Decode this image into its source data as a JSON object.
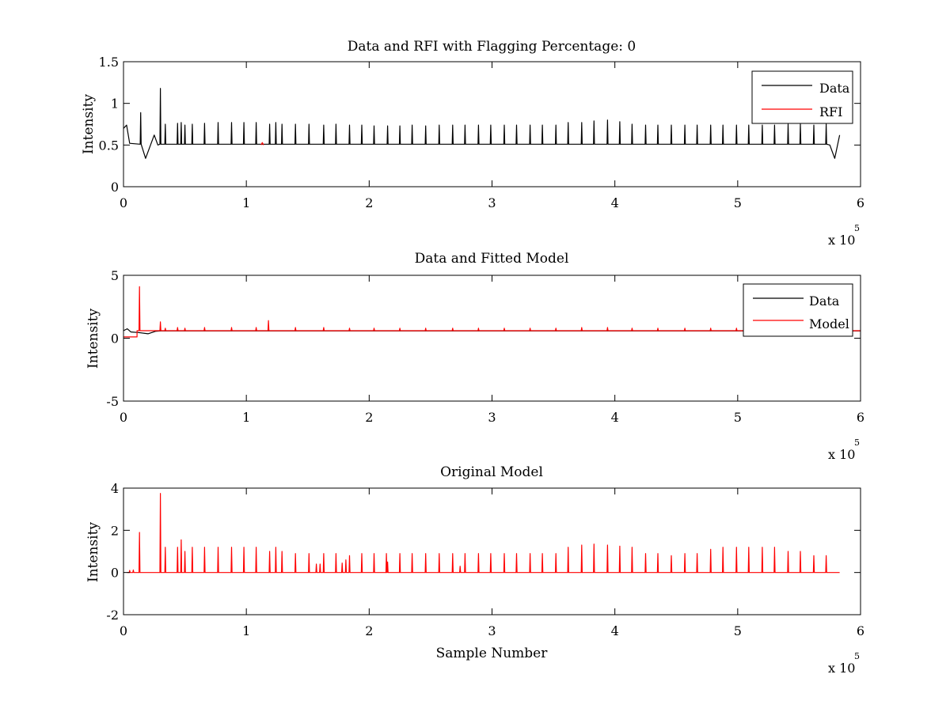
{
  "figure": {
    "background": "#ffffff",
    "axis_color": "#000000"
  },
  "chart_data": [
    {
      "type": "line",
      "title": "Data and RFI with Flagging Percentage: 0",
      "xlabel": "",
      "ylabel": "Intensity",
      "xlim": [
        0,
        600000
      ],
      "ylim": [
        0,
        1.5
      ],
      "x_ticks": [
        0,
        100000,
        200000,
        300000,
        400000,
        500000,
        600000
      ],
      "x_tick_labels": [
        "0",
        "1",
        "2",
        "3",
        "4",
        "5",
        "6"
      ],
      "y_ticks": [
        0,
        0.5,
        1,
        1.5
      ],
      "y_tick_labels": [
        "0",
        "0.5",
        "1",
        "1.5"
      ],
      "x_exponent_label": "x 10",
      "x_exponent": "5",
      "legend": {
        "location": "top-right",
        "entries": [
          "Data",
          "RFI"
        ]
      },
      "series": [
        {
          "name": "Data",
          "color": "#000000",
          "baseline": 0.51,
          "x_range": [
            0,
            583000
          ],
          "features": [
            {
              "x": 0,
              "y": 0.7
            },
            {
              "x": 2500,
              "y": 0.74
            },
            {
              "x": 5000,
              "y": 0.52
            },
            {
              "x": 18000,
              "y": 0.34
            },
            {
              "x": 25000,
              "y": 0.62
            },
            {
              "x": 28000,
              "y": 0.5
            },
            {
              "x": 575000,
              "y": 0.5
            },
            {
              "x": 579000,
              "y": 0.34
            },
            {
              "x": 583000,
              "y": 0.62
            }
          ],
          "spikes": [
            [
              14000,
              0.89
            ],
            [
              30000,
              1.18
            ],
            [
              34000,
              0.75
            ],
            [
              44000,
              0.76
            ],
            [
              47000,
              0.77
            ],
            [
              50000,
              0.74
            ],
            [
              56000,
              0.75
            ],
            [
              66000,
              0.76
            ],
            [
              77000,
              0.77
            ],
            [
              88000,
              0.77
            ],
            [
              98000,
              0.77
            ],
            [
              108000,
              0.77
            ],
            [
              119000,
              0.75
            ],
            [
              124000,
              0.77
            ],
            [
              129000,
              0.75
            ],
            [
              140000,
              0.75
            ],
            [
              151000,
              0.75
            ],
            [
              163000,
              0.74
            ],
            [
              173000,
              0.75
            ],
            [
              184000,
              0.74
            ],
            [
              194000,
              0.74
            ],
            [
              204000,
              0.73
            ],
            [
              215000,
              0.73
            ],
            [
              225000,
              0.73
            ],
            [
              235000,
              0.74
            ],
            [
              246000,
              0.73
            ],
            [
              257000,
              0.74
            ],
            [
              268000,
              0.74
            ],
            [
              278000,
              0.74
            ],
            [
              289000,
              0.74
            ],
            [
              299000,
              0.74
            ],
            [
              310000,
              0.74
            ],
            [
              320000,
              0.74
            ],
            [
              331000,
              0.74
            ],
            [
              341000,
              0.74
            ],
            [
              352000,
              0.74
            ],
            [
              362000,
              0.77
            ],
            [
              373000,
              0.77
            ],
            [
              383000,
              0.79
            ],
            [
              394000,
              0.8
            ],
            [
              404000,
              0.78
            ],
            [
              414000,
              0.75
            ],
            [
              425000,
              0.74
            ],
            [
              435000,
              0.74
            ],
            [
              446000,
              0.74
            ],
            [
              457000,
              0.74
            ],
            [
              467000,
              0.74
            ],
            [
              478000,
              0.74
            ],
            [
              488000,
              0.74
            ],
            [
              499000,
              0.74
            ],
            [
              509000,
              0.74
            ],
            [
              520000,
              0.74
            ],
            [
              530000,
              0.74
            ],
            [
              541000,
              0.75
            ],
            [
              551000,
              0.75
            ],
            [
              562000,
              0.74
            ],
            [
              572000,
              0.75
            ]
          ]
        },
        {
          "name": "RFI",
          "color": "#ff0000",
          "points": [
            [
              112000,
              0.5
            ],
            [
              113000,
              0.53
            ],
            [
              114000,
              0.5
            ]
          ]
        }
      ]
    },
    {
      "type": "line",
      "title": "Data and Fitted Model",
      "xlabel": "",
      "ylabel": "Intensity",
      "xlim": [
        0,
        600000
      ],
      "ylim": [
        -5,
        5
      ],
      "x_ticks": [
        0,
        100000,
        200000,
        300000,
        400000,
        500000,
        600000
      ],
      "x_tick_labels": [
        "0",
        "1",
        "2",
        "3",
        "4",
        "5",
        "6"
      ],
      "y_ticks": [
        -5,
        0,
        5
      ],
      "y_tick_labels": [
        "-5",
        "0",
        "5"
      ],
      "x_exponent_label": "x 10",
      "x_exponent": "5",
      "legend": {
        "location": "top-right",
        "entries": [
          "Data",
          "Model"
        ]
      },
      "series": [
        {
          "name": "Data",
          "color": "#000000",
          "points": [
            [
              0,
              0.6
            ],
            [
              3000,
              0.75
            ],
            [
              6000,
              0.5
            ],
            [
              12000,
              0.45
            ],
            [
              20000,
              0.35
            ],
            [
              26000,
              0.55
            ],
            [
              30000,
              0.58
            ],
            [
              600000,
              0.58
            ]
          ]
        },
        {
          "name": "Model",
          "color": "#ff0000",
          "baseline": 0.6,
          "low_segment": {
            "x": [
              0,
              11000
            ],
            "y": 0.1
          },
          "spikes": [
            [
              13000,
              4.1
            ],
            [
              30000,
              1.3
            ],
            [
              34000,
              0.8
            ],
            [
              44000,
              0.85
            ],
            [
              50000,
              0.8
            ],
            [
              66000,
              0.85
            ],
            [
              88000,
              0.85
            ],
            [
              108000,
              0.85
            ],
            [
              118000,
              1.4
            ],
            [
              140000,
              0.85
            ],
            [
              163000,
              0.85
            ],
            [
              184000,
              0.8
            ],
            [
              204000,
              0.8
            ],
            [
              225000,
              0.8
            ],
            [
              246000,
              0.8
            ],
            [
              268000,
              0.8
            ],
            [
              289000,
              0.8
            ],
            [
              310000,
              0.8
            ],
            [
              331000,
              0.8
            ],
            [
              352000,
              0.8
            ],
            [
              373000,
              0.85
            ],
            [
              394000,
              0.85
            ],
            [
              414000,
              0.8
            ],
            [
              435000,
              0.8
            ],
            [
              457000,
              0.8
            ],
            [
              478000,
              0.8
            ],
            [
              499000,
              0.8
            ],
            [
              520000,
              0.8
            ],
            [
              541000,
              0.8
            ],
            [
              562000,
              0.8
            ],
            [
              583000,
              0.8
            ]
          ]
        }
      ]
    },
    {
      "type": "line",
      "title": "Original Model",
      "xlabel": "Sample Number",
      "ylabel": "Intensity",
      "xlim": [
        0,
        600000
      ],
      "ylim": [
        -2,
        4
      ],
      "x_ticks": [
        0,
        100000,
        200000,
        300000,
        400000,
        500000,
        600000
      ],
      "x_tick_labels": [
        "0",
        "1",
        "2",
        "3",
        "4",
        "5",
        "6"
      ],
      "y_ticks": [
        -2,
        0,
        2,
        4
      ],
      "y_tick_labels": [
        "-2",
        "0",
        "2",
        "4"
      ],
      "x_exponent_label": "x 10",
      "x_exponent": "5",
      "series": [
        {
          "name": "Model",
          "color": "#ff0000",
          "baseline": 0.0,
          "x_range": [
            3000,
            583000
          ],
          "spikes": [
            [
              5000,
              0.1
            ],
            [
              8000,
              0.12
            ],
            [
              13000,
              1.9
            ],
            [
              30000,
              3.75
            ],
            [
              34000,
              1.2
            ],
            [
              44000,
              1.2
            ],
            [
              47000,
              1.55
            ],
            [
              50000,
              1.0
            ],
            [
              56000,
              1.2
            ],
            [
              66000,
              1.2
            ],
            [
              77000,
              1.2
            ],
            [
              88000,
              1.2
            ],
            [
              98000,
              1.2
            ],
            [
              108000,
              1.2
            ],
            [
              119000,
              1.0
            ],
            [
              124000,
              1.2
            ],
            [
              129000,
              1.0
            ],
            [
              140000,
              0.9
            ],
            [
              151000,
              0.9
            ],
            [
              157000,
              0.4
            ],
            [
              160000,
              0.4
            ],
            [
              163000,
              0.9
            ],
            [
              173000,
              0.9
            ],
            [
              178000,
              0.45
            ],
            [
              181000,
              0.6
            ],
            [
              184000,
              0.8
            ],
            [
              194000,
              0.9
            ],
            [
              204000,
              0.9
            ],
            [
              214000,
              0.9
            ],
            [
              215000,
              0.5
            ],
            [
              225000,
              0.9
            ],
            [
              235000,
              0.9
            ],
            [
              246000,
              0.9
            ],
            [
              257000,
              0.9
            ],
            [
              268000,
              0.9
            ],
            [
              274000,
              0.3
            ],
            [
              278000,
              0.9
            ],
            [
              289000,
              0.9
            ],
            [
              299000,
              0.9
            ],
            [
              310000,
              0.9
            ],
            [
              320000,
              0.9
            ],
            [
              331000,
              0.9
            ],
            [
              341000,
              0.9
            ],
            [
              352000,
              0.9
            ],
            [
              362000,
              1.2
            ],
            [
              373000,
              1.3
            ],
            [
              383000,
              1.35
            ],
            [
              394000,
              1.3
            ],
            [
              404000,
              1.25
            ],
            [
              414000,
              1.2
            ],
            [
              425000,
              0.9
            ],
            [
              435000,
              0.9
            ],
            [
              446000,
              0.8
            ],
            [
              457000,
              0.9
            ],
            [
              467000,
              0.9
            ],
            [
              478000,
              1.1
            ],
            [
              488000,
              1.2
            ],
            [
              499000,
              1.2
            ],
            [
              509000,
              1.2
            ],
            [
              520000,
              1.2
            ],
            [
              530000,
              1.2
            ],
            [
              541000,
              1.0
            ],
            [
              551000,
              1.0
            ],
            [
              562000,
              0.8
            ],
            [
              572000,
              0.8
            ]
          ]
        }
      ]
    }
  ]
}
